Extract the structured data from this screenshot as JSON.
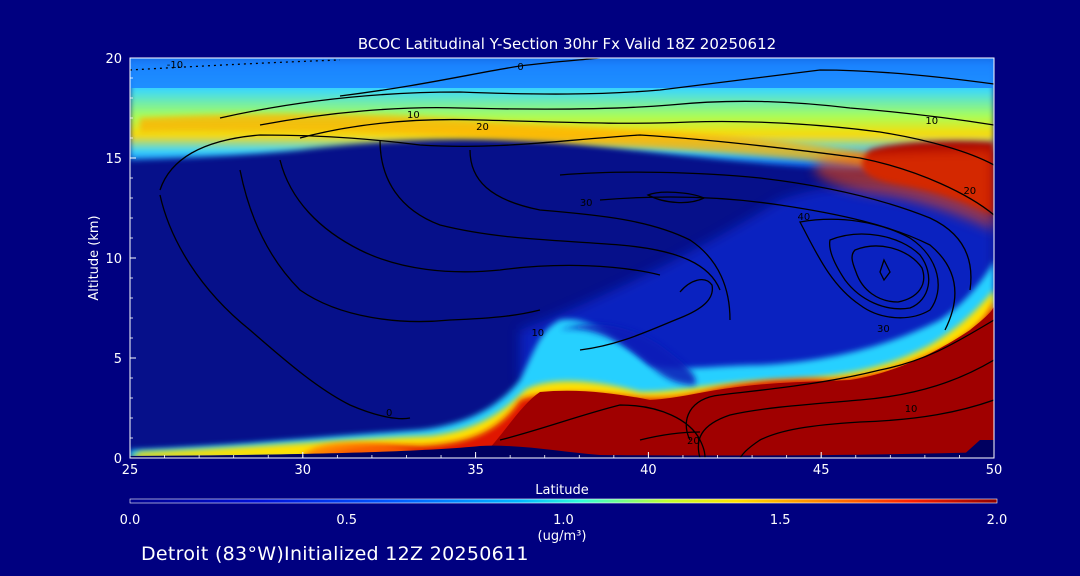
{
  "chart_data": {
    "type": "heatmap",
    "title": "BCOC Latitudinal Y-Section 30hr  Fx Valid 18Z 20250612",
    "xlabel": "Latitude",
    "ylabel": "Altitude (km)",
    "xlim": [
      25,
      50
    ],
    "ylim": [
      0,
      20
    ],
    "xticks": [
      "25",
      "30",
      "35",
      "40",
      "45",
      "50"
    ],
    "yticks": [
      "0",
      "5",
      "10",
      "15",
      "20"
    ],
    "colorbar": {
      "ticks": [
        "0.0",
        "0.5",
        "1.0",
        "1.5",
        "2.0"
      ],
      "unit": "(ug/m³)",
      "range": [
        0,
        2
      ]
    },
    "grid": "off",
    "contour_labels": [
      {
        "text": "-10",
        "lat": 26.3,
        "alt": 19.7
      },
      {
        "text": "0",
        "lat": 36.3,
        "alt": 19.6
      },
      {
        "text": "10",
        "lat": 33.2,
        "alt": 17.2
      },
      {
        "text": "20",
        "lat": 35.2,
        "alt": 16.6
      },
      {
        "text": "10",
        "lat": 48.2,
        "alt": 16.9
      },
      {
        "text": "20",
        "lat": 49.3,
        "alt": 13.4
      },
      {
        "text": "40",
        "lat": 44.5,
        "alt": 12.1
      },
      {
        "text": "30",
        "lat": 38.2,
        "alt": 12.8
      },
      {
        "text": "10",
        "lat": 36.8,
        "alt": 6.3
      },
      {
        "text": "30",
        "lat": 46.8,
        "alt": 6.5
      },
      {
        "text": "10",
        "lat": 47.6,
        "alt": 2.5
      },
      {
        "text": "0",
        "lat": 32.5,
        "alt": 2.3
      },
      {
        "text": "20",
        "lat": 41.3,
        "alt": 0.9
      }
    ]
  },
  "footer": "Detroit (83°W)Initialized 12Z 20250611"
}
